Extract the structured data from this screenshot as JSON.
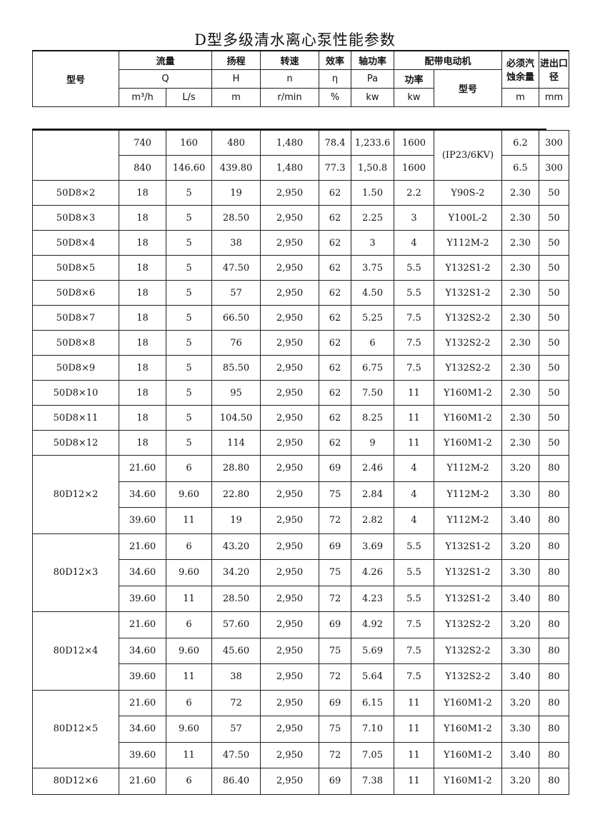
{
  "title": "D型多级清水离心泵性能参数",
  "header": {
    "model": "型号",
    "flow": "流量",
    "flow_sym": "Q",
    "flow_unit1": "m³/h",
    "flow_unit2": "L/s",
    "head": "扬程",
    "head_sym": "H",
    "head_unit": "m",
    "speed": "转速",
    "speed_sym": "n",
    "speed_unit": "r/min",
    "eff": "效率",
    "eff_sym": "η",
    "eff_unit": "%",
    "shaft": "轴功率",
    "shaft_sym": "Pa",
    "shaft_unit": "kw",
    "motor": "配带电动机",
    "motor_power": "功率",
    "motor_power_unit": "kw",
    "motor_model": "型号",
    "npsh": "必须汽蚀余量",
    "npsh_unit": "m",
    "bore": "进出口径",
    "bore_unit": "mm"
  },
  "groups": [
    {
      "model": "",
      "rows": [
        [
          "740",
          "160",
          "480",
          "1,480",
          "78.4",
          "1,233.6",
          "1600",
          "(IP23/6KV)",
          "6.2",
          "300"
        ],
        [
          "840",
          "146.60",
          "439.80",
          "1,480",
          "77.3",
          "1,50.8",
          "1600",
          null,
          "6.5",
          "300"
        ]
      ]
    },
    {
      "model": "50D8×2",
      "rows": [
        [
          "18",
          "5",
          "19",
          "2,950",
          "62",
          "1.50",
          "2.2",
          "Y90S-2",
          "2.30",
          "50"
        ]
      ]
    },
    {
      "model": "50D8×3",
      "rows": [
        [
          "18",
          "5",
          "28.50",
          "2,950",
          "62",
          "2.25",
          "3",
          "Y100L-2",
          "2.30",
          "50"
        ]
      ]
    },
    {
      "model": "50D8×4",
      "rows": [
        [
          "18",
          "5",
          "38",
          "2,950",
          "62",
          "3",
          "4",
          "Y112M-2",
          "2.30",
          "50"
        ]
      ]
    },
    {
      "model": "50D8×5",
      "rows": [
        [
          "18",
          "5",
          "47.50",
          "2,950",
          "62",
          "3.75",
          "5.5",
          "Y132S1-2",
          "2.30",
          "50"
        ]
      ]
    },
    {
      "model": "50D8×6",
      "rows": [
        [
          "18",
          "5",
          "57",
          "2,950",
          "62",
          "4.50",
          "5.5",
          "Y132S1-2",
          "2.30",
          "50"
        ]
      ]
    },
    {
      "model": "50D8×7",
      "rows": [
        [
          "18",
          "5",
          "66.50",
          "2,950",
          "62",
          "5.25",
          "7.5",
          "Y132S2-2",
          "2.30",
          "50"
        ]
      ]
    },
    {
      "model": "50D8×8",
      "rows": [
        [
          "18",
          "5",
          "76",
          "2,950",
          "62",
          "6",
          "7.5",
          "Y132S2-2",
          "2.30",
          "50"
        ]
      ]
    },
    {
      "model": "50D8×9",
      "rows": [
        [
          "18",
          "5",
          "85.50",
          "2,950",
          "62",
          "6.75",
          "7.5",
          "Y132S2-2",
          "2.30",
          "50"
        ]
      ]
    },
    {
      "model": "50D8×10",
      "rows": [
        [
          "18",
          "5",
          "95",
          "2,950",
          "62",
          "7.50",
          "11",
          "Y160M1-2",
          "2.30",
          "50"
        ]
      ]
    },
    {
      "model": "50D8×11",
      "rows": [
        [
          "18",
          "5",
          "104.50",
          "2,950",
          "62",
          "8.25",
          "11",
          "Y160M1-2",
          "2.30",
          "50"
        ]
      ]
    },
    {
      "model": "50D8×12",
      "rows": [
        [
          "18",
          "5",
          "114",
          "2,950",
          "62",
          "9",
          "11",
          "Y160M1-2",
          "2.30",
          "50"
        ]
      ]
    },
    {
      "model": "80D12×2",
      "rows": [
        [
          "21.60",
          "6",
          "28.80",
          "2,950",
          "69",
          "2.46",
          "4",
          "Y112M-2",
          "3.20",
          "80"
        ],
        [
          "34.60",
          "9.60",
          "22.80",
          "2,950",
          "75",
          "2.84",
          "4",
          "Y112M-2",
          "3.30",
          "80"
        ],
        [
          "39.60",
          "11",
          "19",
          "2,950",
          "72",
          "2.82",
          "4",
          "Y112M-2",
          "3.40",
          "80"
        ]
      ]
    },
    {
      "model": "80D12×3",
      "rows": [
        [
          "21.60",
          "6",
          "43.20",
          "2,950",
          "69",
          "3.69",
          "5.5",
          "Y132S1-2",
          "3.20",
          "80"
        ],
        [
          "34.60",
          "9.60",
          "34.20",
          "2,950",
          "75",
          "4.26",
          "5.5",
          "Y132S1-2",
          "3.30",
          "80"
        ],
        [
          "39.60",
          "11",
          "28.50",
          "2,950",
          "72",
          "4.23",
          "5.5",
          "Y132S1-2",
          "3.40",
          "80"
        ]
      ]
    },
    {
      "model": "80D12×4",
      "rows": [
        [
          "21.60",
          "6",
          "57.60",
          "2,950",
          "69",
          "4.92",
          "7.5",
          "Y132S2-2",
          "3.20",
          "80"
        ],
        [
          "34.60",
          "9.60",
          "45.60",
          "2,950",
          "75",
          "5.69",
          "7.5",
          "Y132S2-2",
          "3.30",
          "80"
        ],
        [
          "39.60",
          "11",
          "38",
          "2,950",
          "72",
          "5.64",
          "7.5",
          "Y132S2-2",
          "3.40",
          "80"
        ]
      ]
    },
    {
      "model": "80D12×5",
      "rows": [
        [
          "21.60",
          "6",
          "72",
          "2,950",
          "69",
          "6.15",
          "11",
          "Y160M1-2",
          "3.20",
          "80"
        ],
        [
          "34.60",
          "9.60",
          "57",
          "2,950",
          "75",
          "7.10",
          "11",
          "Y160M1-2",
          "3.30",
          "80"
        ],
        [
          "39.60",
          "11",
          "47.50",
          "2,950",
          "72",
          "7.05",
          "11",
          "Y160M1-2",
          "3.40",
          "80"
        ]
      ]
    },
    {
      "model": "80D12×6",
      "rows": [
        [
          "21.60",
          "6",
          "86.40",
          "2,950",
          "69",
          "7.38",
          "11",
          "Y160M1-2",
          "3.20",
          "80"
        ]
      ]
    }
  ]
}
